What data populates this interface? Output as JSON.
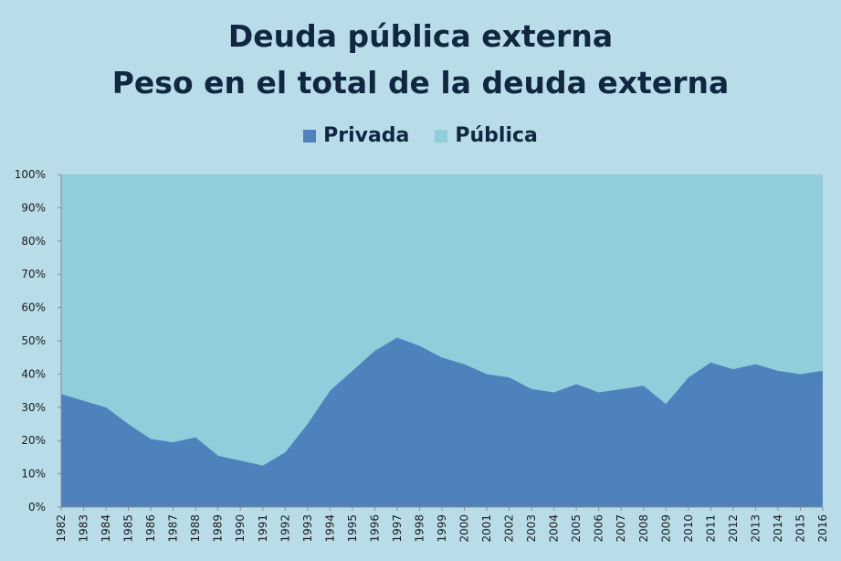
{
  "chart_data": {
    "type": "area",
    "stacked": true,
    "percent": true,
    "title": "Deuda pública externa",
    "subtitle": "Peso en el total de la deuda externa",
    "x": [
      "1982",
      "1983",
      "1984",
      "1985",
      "1986",
      "1987",
      "1988",
      "1989",
      "1990",
      "1991",
      "1992",
      "1993",
      "1994",
      "1995",
      "1996",
      "1997",
      "1998",
      "1999",
      "2000",
      "2001",
      "2002",
      "2003",
      "2004",
      "2005",
      "2006",
      "2007",
      "2008",
      "2009",
      "2010",
      "2011",
      "2012",
      "2013",
      "2014",
      "2015",
      "2016"
    ],
    "series": [
      {
        "name": "Privada",
        "color": "#4f81bd",
        "values": [
          34,
          32,
          30,
          25,
          20.5,
          19.5,
          21,
          15.5,
          14,
          12.5,
          16.5,
          25,
          35,
          41,
          47,
          51,
          48.5,
          45,
          43,
          40,
          39,
          35.5,
          34.5,
          37,
          34.5,
          35.5,
          36.5,
          31,
          39,
          43.5,
          41.5,
          43,
          41,
          40,
          41
        ]
      },
      {
        "name": "Pública",
        "color": "#92cddc",
        "values": [
          66,
          68,
          70,
          75,
          79.5,
          80.5,
          79,
          84.5,
          86,
          87.5,
          83.5,
          75,
          65,
          59,
          53,
          49,
          51.5,
          55,
          57,
          60,
          61,
          64.5,
          65.5,
          63,
          65.5,
          64.5,
          63.5,
          69,
          61,
          56.5,
          58.5,
          57,
          59,
          60,
          59
        ]
      }
    ],
    "yticks": [
      "0%",
      "10%",
      "20%",
      "30%",
      "40%",
      "50%",
      "60%",
      "70%",
      "80%",
      "90%",
      "100%"
    ],
    "ylim": [
      0,
      100
    ],
    "legend_position": "top-center",
    "background": "#b8dde8",
    "title_color": "#112640"
  }
}
